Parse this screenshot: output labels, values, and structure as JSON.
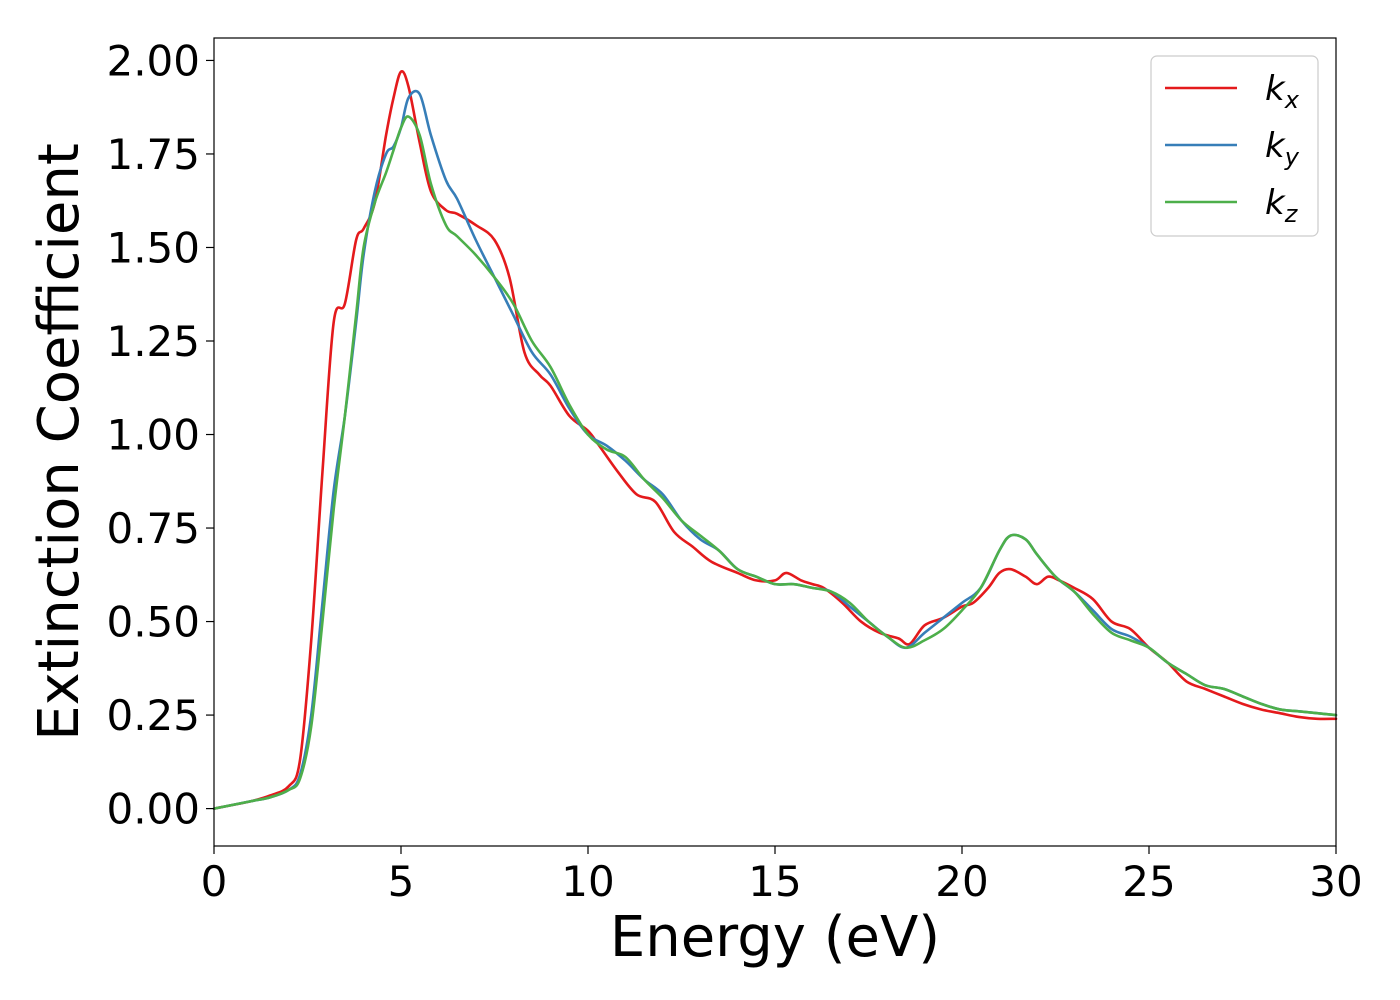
{
  "chart_data": {
    "type": "line",
    "xlabel": "Energy (eV)",
    "ylabel": "Extinction Coefficient",
    "xlim": [
      0,
      30
    ],
    "ylim": [
      -0.1,
      2.06
    ],
    "xticks": [
      0,
      5,
      10,
      15,
      20,
      25,
      30
    ],
    "xtick_labels": [
      "0",
      "5",
      "10",
      "15",
      "20",
      "25",
      "30"
    ],
    "yticks": [
      0.0,
      0.25,
      0.5,
      0.75,
      1.0,
      1.25,
      1.5,
      1.75,
      2.0
    ],
    "ytick_labels": [
      "0.00",
      "0.25",
      "0.50",
      "0.75",
      "1.00",
      "1.25",
      "1.50",
      "1.75",
      "2.00"
    ],
    "grid": false,
    "legend_position": "top-right",
    "series": [
      {
        "name": "k",
        "subscript": "x",
        "color": "#e41a1c",
        "x": [
          0,
          1,
          1.5,
          2.0,
          2.3,
          2.6,
          2.9,
          3.2,
          3.5,
          3.8,
          4.0,
          4.3,
          4.6,
          4.8,
          5.0,
          5.2,
          5.5,
          5.8,
          6.2,
          6.5,
          7.0,
          7.5,
          7.9,
          8.3,
          8.7,
          9.0,
          9.5,
          10.0,
          10.3,
          10.8,
          11.3,
          11.8,
          12.3,
          12.8,
          13.3,
          14.0,
          14.5,
          15.0,
          15.3,
          15.7,
          16.0,
          16.3,
          16.8,
          17.3,
          17.8,
          18.3,
          18.6,
          19.0,
          19.5,
          20.0,
          20.3,
          20.7,
          21.0,
          21.3,
          21.7,
          22.0,
          22.3,
          22.6,
          23.0,
          23.5,
          24.0,
          24.5,
          25.0,
          25.5,
          26.0,
          26.5,
          27.0,
          27.5,
          28.0,
          28.5,
          29.0,
          29.5,
          30.0
        ],
        "y": [
          0.0,
          0.02,
          0.035,
          0.06,
          0.13,
          0.45,
          0.9,
          1.3,
          1.35,
          1.52,
          1.55,
          1.62,
          1.8,
          1.9,
          1.97,
          1.93,
          1.78,
          1.65,
          1.6,
          1.59,
          1.56,
          1.52,
          1.42,
          1.22,
          1.16,
          1.13,
          1.05,
          1.01,
          0.97,
          0.9,
          0.84,
          0.82,
          0.74,
          0.7,
          0.66,
          0.63,
          0.61,
          0.61,
          0.63,
          0.61,
          0.6,
          0.59,
          0.55,
          0.5,
          0.47,
          0.455,
          0.44,
          0.49,
          0.51,
          0.54,
          0.55,
          0.59,
          0.63,
          0.64,
          0.62,
          0.6,
          0.62,
          0.61,
          0.59,
          0.56,
          0.5,
          0.48,
          0.43,
          0.39,
          0.34,
          0.32,
          0.3,
          0.28,
          0.265,
          0.255,
          0.245,
          0.24,
          0.24
        ]
      },
      {
        "name": "k",
        "subscript": "y",
        "color": "#377eb8",
        "x": [
          0,
          1,
          1.5,
          2.0,
          2.3,
          2.6,
          2.9,
          3.2,
          3.5,
          3.8,
          4.0,
          4.3,
          4.6,
          4.8,
          5.0,
          5.2,
          5.5,
          5.8,
          6.2,
          6.5,
          7.0,
          7.5,
          8.0,
          8.5,
          9.0,
          9.5,
          10.0,
          10.5,
          11.0,
          11.5,
          12.0,
          12.5,
          13.0,
          13.5,
          14.0,
          14.5,
          15.0,
          15.5,
          16.0,
          16.5,
          17.0,
          17.5,
          18.0,
          18.5,
          19.0,
          19.5,
          20.0,
          20.5,
          21.0,
          21.3,
          21.7,
          22.0,
          22.5,
          23.0,
          23.5,
          24.0,
          24.5,
          25.0,
          25.5,
          26.0,
          26.5,
          27.0,
          27.5,
          28.0,
          28.5,
          29.0,
          29.5,
          30.0
        ],
        "y": [
          0.0,
          0.02,
          0.03,
          0.05,
          0.09,
          0.25,
          0.55,
          0.85,
          1.05,
          1.3,
          1.48,
          1.65,
          1.75,
          1.77,
          1.82,
          1.9,
          1.91,
          1.8,
          1.68,
          1.63,
          1.52,
          1.42,
          1.32,
          1.22,
          1.16,
          1.07,
          1.0,
          0.97,
          0.93,
          0.88,
          0.84,
          0.77,
          0.72,
          0.69,
          0.64,
          0.62,
          0.6,
          0.6,
          0.59,
          0.58,
          0.54,
          0.5,
          0.46,
          0.43,
          0.47,
          0.51,
          0.55,
          0.59,
          0.69,
          0.73,
          0.72,
          0.68,
          0.62,
          0.58,
          0.53,
          0.48,
          0.46,
          0.43,
          0.39,
          0.36,
          0.33,
          0.32,
          0.3,
          0.28,
          0.265,
          0.26,
          0.255,
          0.25
        ]
      },
      {
        "name": "k",
        "subscript": "z",
        "color": "#4daf4a",
        "x": [
          0,
          1,
          1.5,
          2.0,
          2.3,
          2.6,
          2.9,
          3.2,
          3.5,
          3.8,
          4.0,
          4.3,
          4.6,
          4.8,
          5.0,
          5.2,
          5.5,
          5.8,
          6.2,
          6.5,
          7.0,
          7.5,
          8.0,
          8.5,
          9.0,
          9.5,
          10.0,
          10.5,
          11.0,
          11.5,
          12.0,
          12.5,
          13.0,
          13.5,
          14.0,
          14.5,
          15.0,
          15.5,
          16.0,
          16.5,
          17.0,
          17.5,
          18.0,
          18.5,
          19.0,
          19.5,
          20.0,
          20.5,
          21.0,
          21.3,
          21.7,
          22.0,
          22.5,
          23.0,
          23.5,
          24.0,
          24.5,
          25.0,
          25.5,
          26.0,
          26.5,
          27.0,
          27.5,
          28.0,
          28.5,
          29.0,
          29.5,
          30.0
        ],
        "y": [
          0.0,
          0.02,
          0.03,
          0.05,
          0.08,
          0.22,
          0.5,
          0.8,
          1.05,
          1.32,
          1.5,
          1.62,
          1.7,
          1.76,
          1.82,
          1.85,
          1.8,
          1.67,
          1.56,
          1.53,
          1.48,
          1.42,
          1.35,
          1.25,
          1.18,
          1.08,
          1.0,
          0.96,
          0.94,
          0.88,
          0.83,
          0.77,
          0.73,
          0.69,
          0.64,
          0.62,
          0.6,
          0.6,
          0.59,
          0.58,
          0.55,
          0.5,
          0.46,
          0.43,
          0.45,
          0.48,
          0.53,
          0.59,
          0.69,
          0.73,
          0.72,
          0.68,
          0.62,
          0.58,
          0.52,
          0.47,
          0.45,
          0.43,
          0.39,
          0.36,
          0.33,
          0.32,
          0.3,
          0.28,
          0.265,
          0.26,
          0.255,
          0.25
        ]
      }
    ]
  }
}
